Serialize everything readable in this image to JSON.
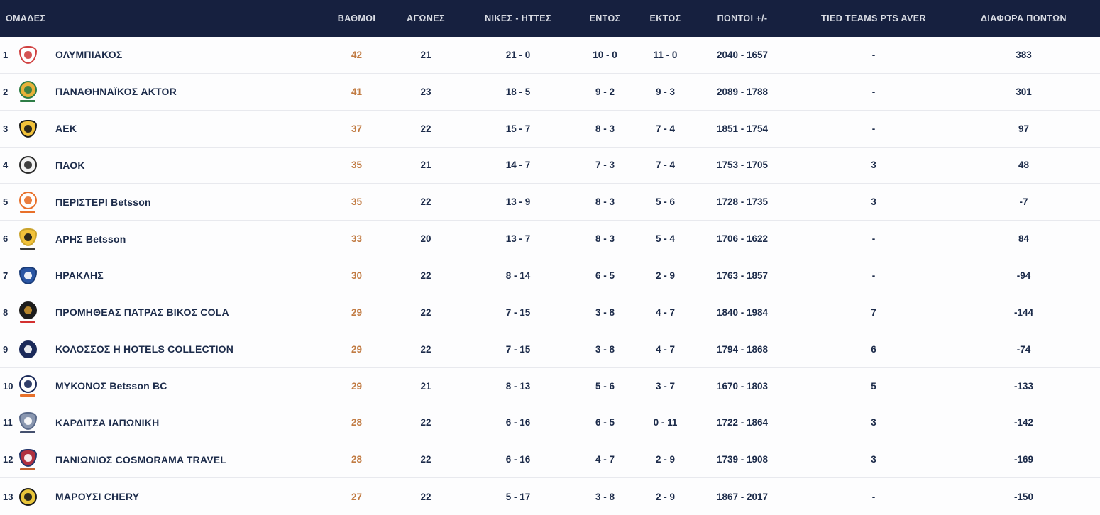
{
  "colors": {
    "header_bg": "#16203f",
    "header_text": "#d9dce4",
    "row_text": "#1c2b4a",
    "points_accent": "#c17b43",
    "divider": "#e8e9ee",
    "row_bg": "#fdfdfe"
  },
  "header": {
    "columns": [
      "ΟΜΑΔΕΣ",
      "ΒΑΘΜΟΙ",
      "ΑΓΩΝΕΣ",
      "ΝΙΚΕΣ - ΗΤΤΕΣ",
      "ΕΝΤΟΣ",
      "ΕΚΤΟΣ",
      "ΠΟΝΤΟΙ +/-",
      "TIED TEAMS PTS AVER",
      "ΔΙΑΦΟΡΑ ΠΟΝΤΩΝ"
    ]
  },
  "teams": [
    {
      "rank": "1",
      "name": "ΟΛΥΜΠΙΑΚΟΣ",
      "points": "42",
      "games": "21",
      "win_loss": "21 - 0",
      "home": "10 - 0",
      "away": "11 - 0",
      "points_for_against": "2040 - 1657",
      "tied_teams_pts_aver": "-",
      "points_diff": "383",
      "logo": {
        "icon": "olympiacos-crest-icon",
        "shape": "shield",
        "bg": "#ffffff",
        "border": "#d04040",
        "inner": "#d04040",
        "sub": ""
      }
    },
    {
      "rank": "2",
      "name": "ΠΑΝΑΘΗΝΑΪΚΟΣ AKTOR",
      "points": "41",
      "games": "23",
      "win_loss": "18 - 5",
      "home": "9 - 2",
      "away": "9 - 3",
      "points_for_against": "2089 - 1788",
      "tied_teams_pts_aver": "-",
      "points_diff": "301",
      "logo": {
        "icon": "panathinaikos-crest-icon",
        "shape": "circle",
        "bg": "#e8b13a",
        "border": "#2e7d46",
        "inner": "#2e7d46",
        "sub": "#2e7d46"
      }
    },
    {
      "rank": "3",
      "name": "ΑΕΚ",
      "points": "37",
      "games": "22",
      "win_loss": "15 - 7",
      "home": "8 - 3",
      "away": "7 - 4",
      "points_for_against": "1851 - 1754",
      "tied_teams_pts_aver": "-",
      "points_diff": "97",
      "logo": {
        "icon": "aek-crest-icon",
        "shape": "shield",
        "bg": "#f2c23a",
        "border": "#1a1a1a",
        "inner": "#1a1a1a",
        "sub": ""
      }
    },
    {
      "rank": "4",
      "name": "ΠΑΟΚ",
      "points": "35",
      "games": "21",
      "win_loss": "14 - 7",
      "home": "7 - 3",
      "away": "7 - 4",
      "points_for_against": "1753 - 1705",
      "tied_teams_pts_aver": "3",
      "points_diff": "48",
      "logo": {
        "icon": "paok-crest-icon",
        "shape": "circle",
        "bg": "#f2f2f2",
        "border": "#2b2b2b",
        "inner": "#2b2b2b",
        "sub": ""
      }
    },
    {
      "rank": "5",
      "name": "ΠΕΡΙΣΤΕΡΙ Betsson",
      "points": "35",
      "games": "22",
      "win_loss": "13 - 9",
      "home": "8 - 3",
      "away": "5 - 6",
      "points_for_against": "1728 - 1735",
      "tied_teams_pts_aver": "3",
      "points_diff": "-7",
      "logo": {
        "icon": "peristeri-crest-icon",
        "shape": "circle",
        "bg": "#ffffff",
        "border": "#e8702a",
        "inner": "#e8702a",
        "sub": "#e8702a"
      }
    },
    {
      "rank": "6",
      "name": "ΑΡΗΣ Betsson",
      "points": "33",
      "games": "20",
      "win_loss": "13 - 7",
      "home": "8 - 3",
      "away": "5 - 4",
      "points_for_against": "1706 - 1622",
      "tied_teams_pts_aver": "-",
      "points_diff": "84",
      "logo": {
        "icon": "aris-crest-icon",
        "shape": "shield",
        "bg": "#f2c23a",
        "border": "#caa32c",
        "inner": "#1a1a1a",
        "sub": "#3a3a3a"
      }
    },
    {
      "rank": "7",
      "name": "ΗΡΑΚΛΗΣ",
      "points": "30",
      "games": "22",
      "win_loss": "8 - 14",
      "home": "6 - 5",
      "away": "2 - 9",
      "points_for_against": "1763 - 1857",
      "tied_teams_pts_aver": "-",
      "points_diff": "-94",
      "logo": {
        "icon": "iraklis-crest-icon",
        "shape": "shield",
        "bg": "#2a56a4",
        "border": "#1b3c78",
        "inner": "#ffffff",
        "sub": ""
      }
    },
    {
      "rank": "8",
      "name": "ΠΡΟΜΗΘΕΑΣ ΠΑΤΡΑΣ ΒΙΚΟΣ COLA",
      "points": "29",
      "games": "22",
      "win_loss": "7 - 15",
      "home": "3 - 8",
      "away": "4 - 7",
      "points_for_against": "1840 - 1984",
      "tied_teams_pts_aver": "7",
      "points_diff": "-144",
      "logo": {
        "icon": "promitheas-crest-icon",
        "shape": "circle",
        "bg": "#1c1c1c",
        "border": "#1c1c1c",
        "inner": "#c8912f",
        "sub": "#d33030"
      }
    },
    {
      "rank": "9",
      "name": "ΚΟΛΟΣΣΟΣ Η HOTELS COLLECTION",
      "points": "29",
      "games": "22",
      "win_loss": "7 - 15",
      "home": "3 - 8",
      "away": "4 - 7",
      "points_for_against": "1794 - 1868",
      "tied_teams_pts_aver": "6",
      "points_diff": "-74",
      "logo": {
        "icon": "kolossos-crest-icon",
        "shape": "circle",
        "bg": "#1b2a5a",
        "border": "#1b2a5a",
        "inner": "#ffffff",
        "sub": ""
      }
    },
    {
      "rank": "10",
      "name": "ΜΥΚΟΝΟΣ Betsson BC",
      "points": "29",
      "games": "21",
      "win_loss": "8 - 13",
      "home": "5 - 6",
      "away": "3 - 7",
      "points_for_against": "1670 - 1803",
      "tied_teams_pts_aver": "5",
      "points_diff": "-133",
      "logo": {
        "icon": "mykonos-crest-icon",
        "shape": "circle",
        "bg": "#ffffff",
        "border": "#1b2a5a",
        "inner": "#1b2a5a",
        "sub": "#e8702a"
      }
    },
    {
      "rank": "11",
      "name": "ΚΑΡΔΙΤΣΑ ΙΑΠΩΝΙΚΗ",
      "points": "28",
      "games": "22",
      "win_loss": "6 - 16",
      "home": "6 - 5",
      "away": "0 - 11",
      "points_for_against": "1722 - 1864",
      "tied_teams_pts_aver": "3",
      "points_diff": "-142",
      "logo": {
        "icon": "karditsa-crest-icon",
        "shape": "shield",
        "bg": "#8a97b0",
        "border": "#5a6a8a",
        "inner": "#ffffff",
        "sub": "#44506e"
      }
    },
    {
      "rank": "12",
      "name": "ΠΑΝΙΩΝΙΟΣ COSMORAMA TRAVEL",
      "points": "28",
      "games": "22",
      "win_loss": "6 - 16",
      "home": "4 - 7",
      "away": "2 - 9",
      "points_for_against": "1739 - 1908",
      "tied_teams_pts_aver": "3",
      "points_diff": "-169",
      "logo": {
        "icon": "panionios-crest-icon",
        "shape": "shield",
        "bg": "#b03040",
        "border": "#24366b",
        "inner": "#ffffff",
        "sub": "#c06030"
      }
    },
    {
      "rank": "13",
      "name": "ΜΑΡΟΥΣΙ CHERY",
      "points": "27",
      "games": "22",
      "win_loss": "5 - 17",
      "home": "3 - 8",
      "away": "2 - 9",
      "points_for_against": "1867 - 2017",
      "tied_teams_pts_aver": "-",
      "points_diff": "-150",
      "logo": {
        "icon": "maroussi-crest-icon",
        "shape": "circle",
        "bg": "#e8c53a",
        "border": "#1a1a1a",
        "inner": "#1a1a1a",
        "sub": ""
      }
    }
  ]
}
